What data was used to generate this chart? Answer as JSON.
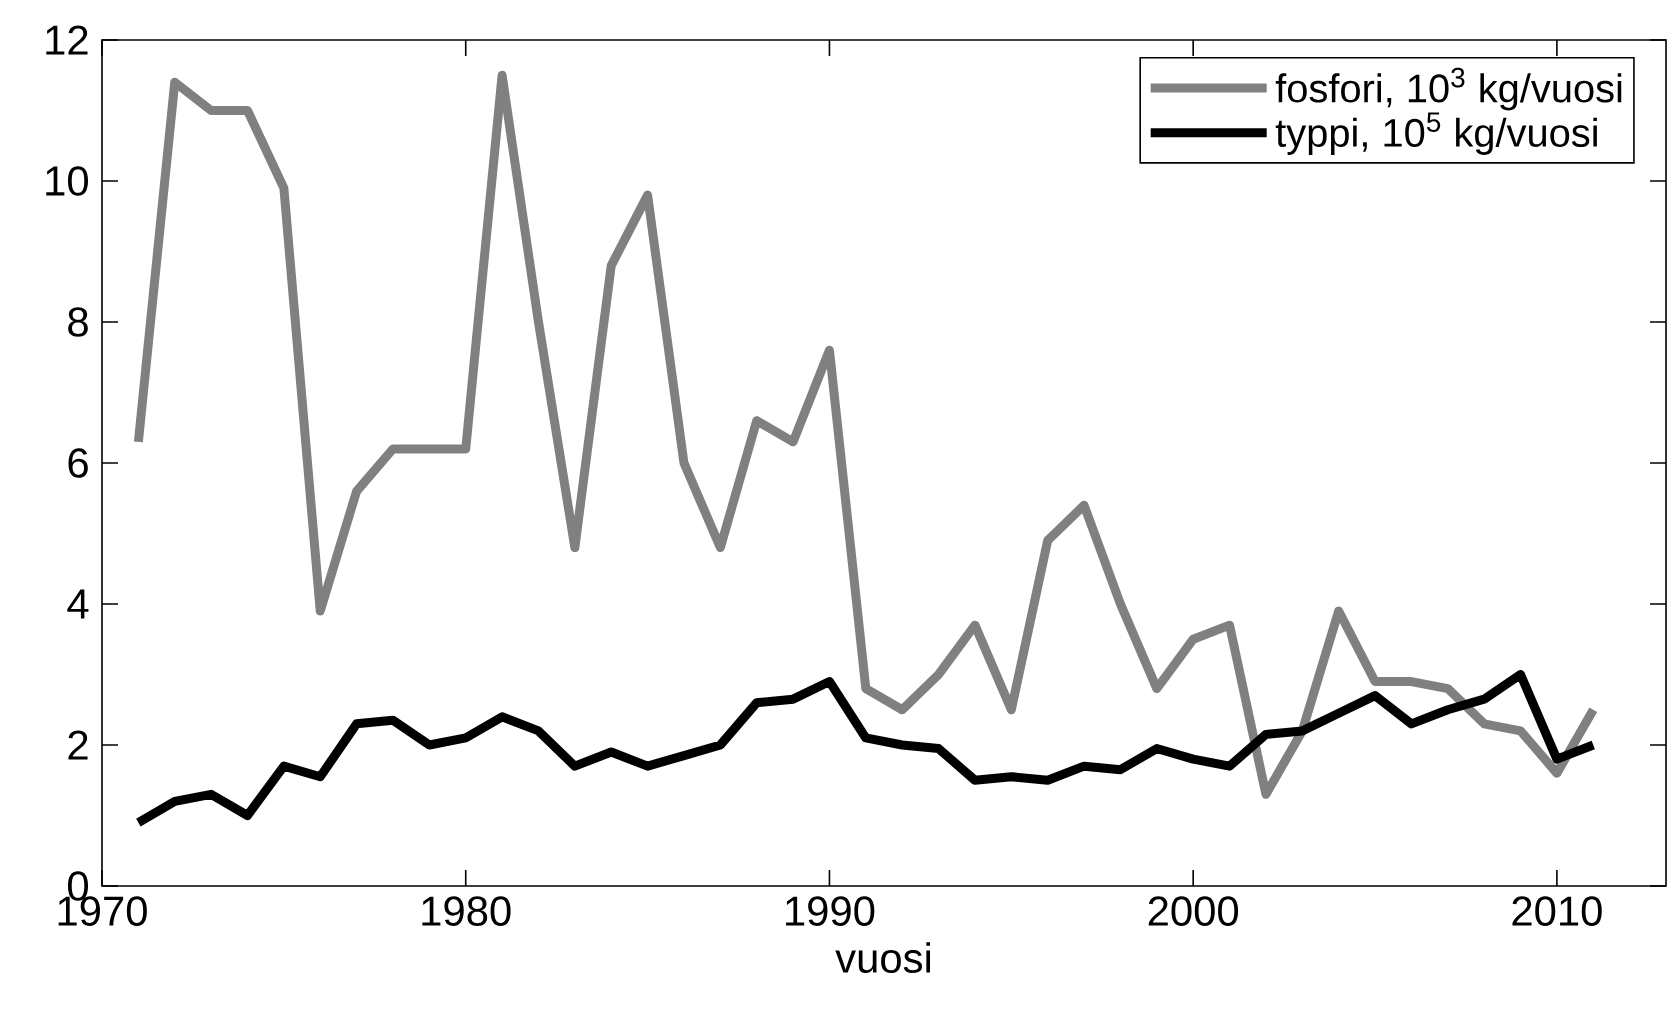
{
  "chart_data": {
    "type": "line",
    "xlabel": "vuosi",
    "x": [
      1971,
      1972,
      1973,
      1974,
      1975,
      1976,
      1977,
      1978,
      1979,
      1980,
      1981,
      1982,
      1983,
      1984,
      1985,
      1986,
      1987,
      1988,
      1989,
      1990,
      1991,
      1992,
      1993,
      1994,
      1995,
      1996,
      1997,
      1998,
      1999,
      2000,
      2001,
      2002,
      2003,
      2004,
      2005,
      2006,
      2007,
      2008,
      2009,
      2010,
      2011
    ],
    "series": [
      {
        "name": "fosfori, 10$^{3}$ kg/vuosi",
        "color": "#808080",
        "values": [
          6.3,
          11.4,
          11.0,
          11.0,
          9.9,
          3.9,
          5.6,
          6.2,
          6.2,
          6.2,
          11.5,
          8.0,
          4.8,
          8.8,
          9.8,
          6.0,
          4.8,
          6.6,
          6.3,
          7.6,
          2.8,
          2.5,
          3.0,
          3.7,
          2.5,
          4.9,
          5.4,
          4.0,
          2.8,
          3.5,
          3.7,
          1.3,
          2.2,
          3.9,
          2.9,
          2.9,
          2.8,
          2.3,
          2.2,
          1.6,
          2.5
        ]
      },
      {
        "name": "typpi, 10$^{5}$ kg/vuosi",
        "color": "#000000",
        "values": [
          0.9,
          1.2,
          1.3,
          1.0,
          1.7,
          1.55,
          2.3,
          2.35,
          2.0,
          2.1,
          2.4,
          2.2,
          1.7,
          1.9,
          1.7,
          1.85,
          2.0,
          2.6,
          2.65,
          2.9,
          2.1,
          2.0,
          1.95,
          1.5,
          1.55,
          1.5,
          1.7,
          1.65,
          1.95,
          1.8,
          1.7,
          2.15,
          2.2,
          2.45,
          2.7,
          2.3,
          2.5,
          2.65,
          3.0,
          1.8,
          2.0
        ]
      }
    ],
    "xlim": [
      1970,
      2013
    ],
    "ylim": [
      0,
      12
    ],
    "xticks": [
      1970,
      1980,
      1990,
      2000,
      2010
    ],
    "yticks": [
      0,
      2,
      4,
      6,
      8,
      10,
      12
    ],
    "legend": "top right",
    "grid": false,
    "marker": "none",
    "line_style": "solid"
  }
}
